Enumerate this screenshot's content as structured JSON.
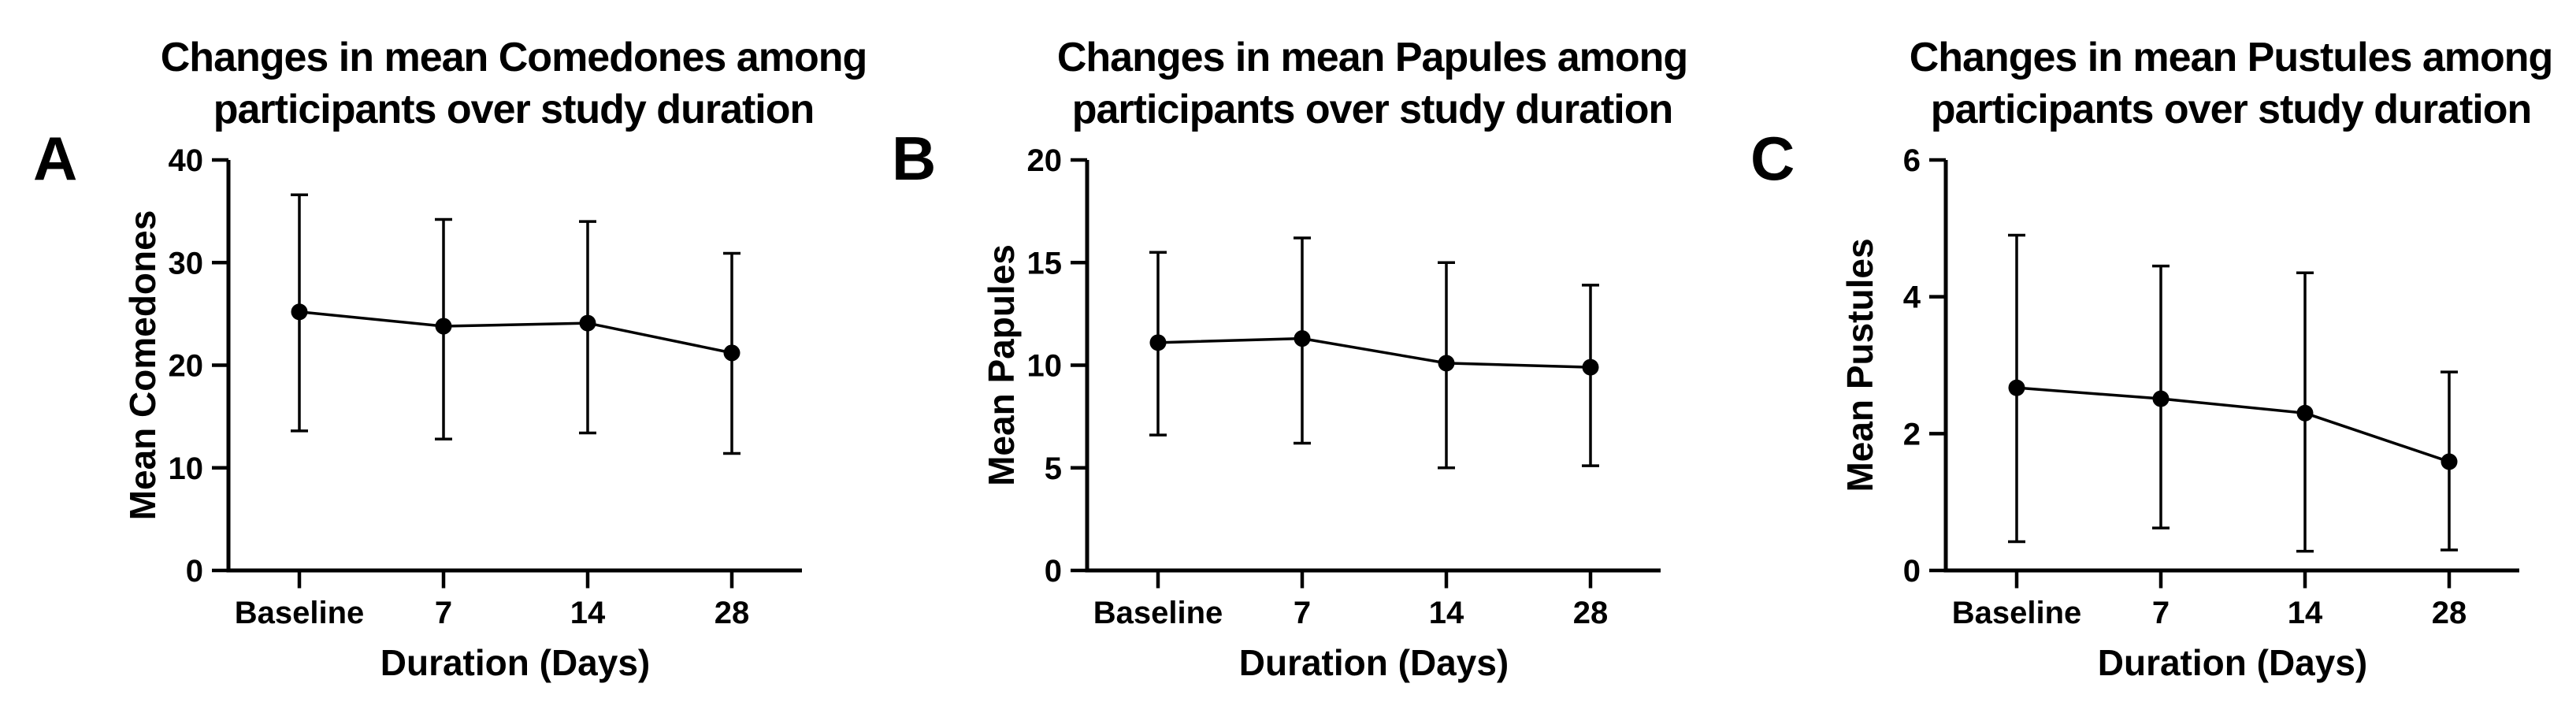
{
  "figure": {
    "background": "#ffffff",
    "ink_color": "#000000",
    "panels": [
      {
        "letter": "A",
        "title_lines": [
          "Changes in mean Comedones among",
          "participants over study duration"
        ]
      },
      {
        "letter": "B",
        "title_lines": [
          "Changes in mean Papules among",
          "participants over study duration"
        ]
      },
      {
        "letter": "C",
        "title_lines": [
          "Changes in mean Pustules among",
          "participants over study duration"
        ]
      }
    ]
  },
  "chart_data": [
    {
      "type": "line",
      "panel_label": "A",
      "title": "Changes in mean Comedones among participants over study duration",
      "xlabel": "Duration (Days)",
      "ylabel": "Mean Comedones",
      "categories": [
        "Baseline",
        "7",
        "14",
        "28"
      ],
      "series": [
        {
          "name": "Mean Comedones",
          "values": [
            25.2,
            23.8,
            24.1,
            21.2
          ],
          "error_low": [
            13.6,
            12.8,
            13.4,
            11.4
          ],
          "error_high": [
            36.6,
            34.2,
            34.0,
            30.9
          ]
        }
      ],
      "ylim": [
        0,
        40
      ],
      "yticks": [
        0,
        10,
        20,
        30,
        40
      ],
      "grid": false,
      "legend": null,
      "marker": "filled-circle",
      "color": "#000000"
    },
    {
      "type": "line",
      "panel_label": "B",
      "title": "Changes in mean Papules among participants over study duration",
      "xlabel": "Duration (Days)",
      "ylabel": "Mean Papules",
      "categories": [
        "Baseline",
        "7",
        "14",
        "28"
      ],
      "series": [
        {
          "name": "Mean Papules",
          "values": [
            11.1,
            11.3,
            10.1,
            9.9
          ],
          "error_low": [
            6.6,
            6.2,
            5.0,
            5.1
          ],
          "error_high": [
            15.5,
            16.2,
            15.0,
            13.9
          ]
        }
      ],
      "ylim": [
        0,
        20
      ],
      "yticks": [
        0,
        5,
        10,
        15,
        20
      ],
      "grid": false,
      "legend": null,
      "marker": "filled-circle",
      "color": "#000000"
    },
    {
      "type": "line",
      "panel_label": "C",
      "title": "Changes in mean Pustules among participants over study duration",
      "xlabel": "Duration (Days)",
      "ylabel": "Mean Pustules",
      "categories": [
        "Baseline",
        "7",
        "14",
        "28"
      ],
      "series": [
        {
          "name": "Mean Pustules",
          "values": [
            2.67,
            2.51,
            2.3,
            1.59
          ],
          "error_low": [
            0.42,
            0.62,
            0.28,
            0.3
          ],
          "error_high": [
            4.9,
            4.45,
            4.35,
            2.9
          ]
        }
      ],
      "ylim": [
        0,
        6
      ],
      "yticks": [
        0,
        2,
        4,
        6
      ],
      "grid": false,
      "legend": null,
      "marker": "filled-circle",
      "color": "#000000"
    }
  ]
}
